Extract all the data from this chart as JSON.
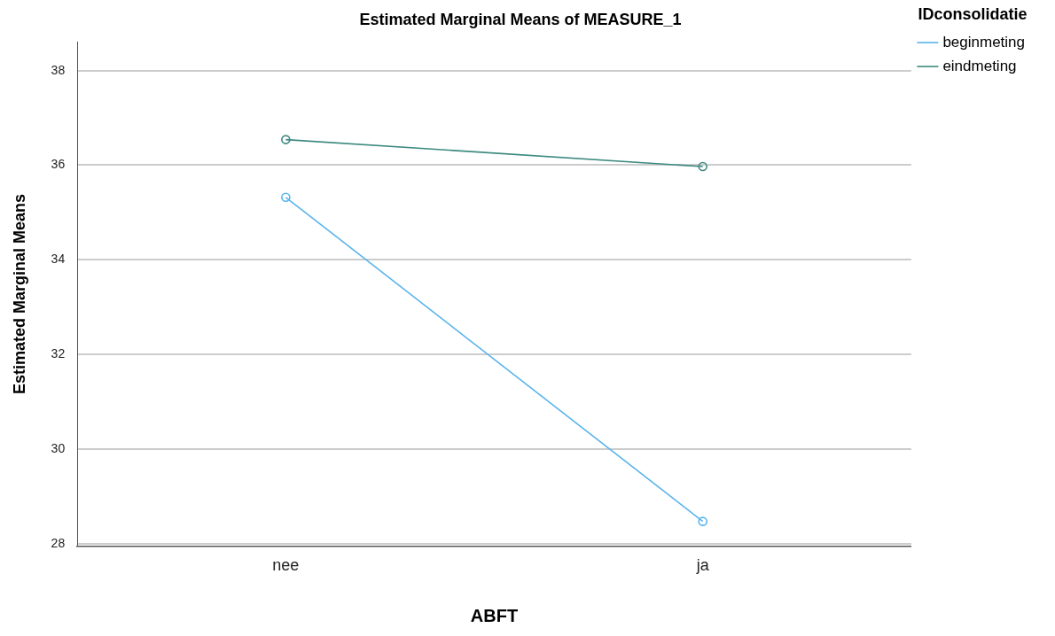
{
  "chart_data": {
    "type": "line",
    "title": "Estimated Marginal Means of MEASURE_1",
    "xlabel": "ABFT",
    "ylabel": "Estimated Marginal Means",
    "legend_title": "IDconsolidatie",
    "categories": [
      "nee",
      "ja"
    ],
    "series": [
      {
        "name": "beginmeting",
        "color": "#5ab4ec",
        "values": [
          35.32,
          28.47
        ]
      },
      {
        "name": "eindmeting",
        "color": "#3d8a80",
        "values": [
          36.54,
          35.97
        ]
      }
    ],
    "ylim": [
      27.95,
      38.6
    ],
    "yticks": [
      28,
      30,
      32,
      34,
      36,
      38
    ],
    "grid": "y",
    "legend": "top right",
    "marker": "circle",
    "line_style": "solid"
  }
}
